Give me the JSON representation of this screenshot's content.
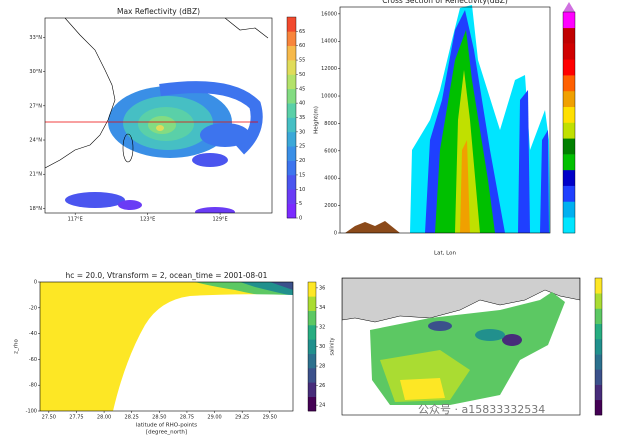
{
  "chart_data": [
    {
      "type": "map",
      "title": "Max Reflectivity (dBZ)",
      "xlim": [
        114.5,
        133.3
      ],
      "xticks": [
        {
          "value": 117,
          "label": "117°E"
        },
        {
          "value": 123,
          "label": "123°E"
        },
        {
          "value": 129,
          "label": "129°E"
        }
      ],
      "ylim": [
        17.6,
        34.7
      ],
      "yticks": [
        {
          "value": 18,
          "label": "18°N"
        },
        {
          "value": 21,
          "label": "21°N"
        },
        {
          "value": 24,
          "label": "24°N"
        },
        {
          "value": 27,
          "label": "27°N"
        },
        {
          "value": 30,
          "label": "30°N"
        },
        {
          "value": 33,
          "label": "33°N"
        }
      ],
      "colorbar": {
        "lim": [
          0,
          70
        ],
        "ticks": [
          0,
          5,
          10,
          15,
          20,
          25,
          30,
          35,
          40,
          45,
          50,
          55,
          60,
          65
        ],
        "colors": [
          "#7b2bff",
          "#6a3cf5",
          "#4b55ef",
          "#3d74ee",
          "#3a8fe6",
          "#3ba8d8",
          "#46bfc4",
          "#5ad0a8",
          "#83dc82",
          "#b3e26a",
          "#e0dc5a",
          "#f6b94b",
          "#f8853c",
          "#f24a2e"
        ]
      }
    },
    {
      "type": "contour",
      "title": "Cross Section of Reflectivity(dBZ)",
      "xlabel": "Lat, Lon",
      "ylabel": "Height(m)",
      "ylim": [
        0,
        16500
      ],
      "yticks": [
        0,
        2000,
        4000,
        6000,
        8000,
        10000,
        12000,
        14000,
        16000
      ],
      "colorbar": {
        "colors": [
          "#00e5ff",
          "#00b0f0",
          "#1f3fff",
          "#0000c8",
          "#00c000",
          "#008000",
          "#c0e000",
          "#ffe000",
          "#f0a000",
          "#ff6000",
          "#ff0000",
          "#d00000",
          "#c00000",
          "#ff00ff"
        ]
      }
    },
    {
      "type": "contour",
      "title": "hc = 20.0, Vtransform = 2, ocean_time = 2001-08-01",
      "xlabel": [
        "latitude of RHO-points",
        "[degree_north]"
      ],
      "ylabel": "z_rho",
      "xlim": [
        27.42,
        29.71
      ],
      "xticks": [
        {
          "value": 27.5,
          "label": "27.50"
        },
        {
          "value": 27.75,
          "label": "27.75"
        },
        {
          "value": 28,
          "label": "28.00"
        },
        {
          "value": 28.25,
          "label": "28.25"
        },
        {
          "value": 28.5,
          "label": "28.50"
        },
        {
          "value": 28.75,
          "label": "28.75"
        },
        {
          "value": 29,
          "label": "29.00"
        },
        {
          "value": 29.25,
          "label": "29.25"
        },
        {
          "value": 29.5,
          "label": "29.50"
        }
      ],
      "ylim": [
        -100,
        0
      ],
      "yticks": [
        0,
        -20,
        -40,
        -60,
        -80,
        -100
      ],
      "colorbar": {
        "label": "salinity",
        "lim": [
          23.4,
          36.6
        ],
        "ticks": [
          24,
          26,
          28,
          30,
          32,
          34,
          36
        ],
        "colors": [
          "#440154",
          "#472c7a",
          "#3b518b",
          "#2c718e",
          "#21908d",
          "#27ad81",
          "#5cc863",
          "#aadc32",
          "#fde725"
        ]
      }
    },
    {
      "type": "map",
      "colorbar": {
        "colors": [
          "#440154",
          "#472c7a",
          "#3b518b",
          "#2c718e",
          "#21908d",
          "#27ad81",
          "#5cc863",
          "#aadc32",
          "#fde725"
        ]
      }
    }
  ],
  "watermark": "公众号 · a15833332534"
}
